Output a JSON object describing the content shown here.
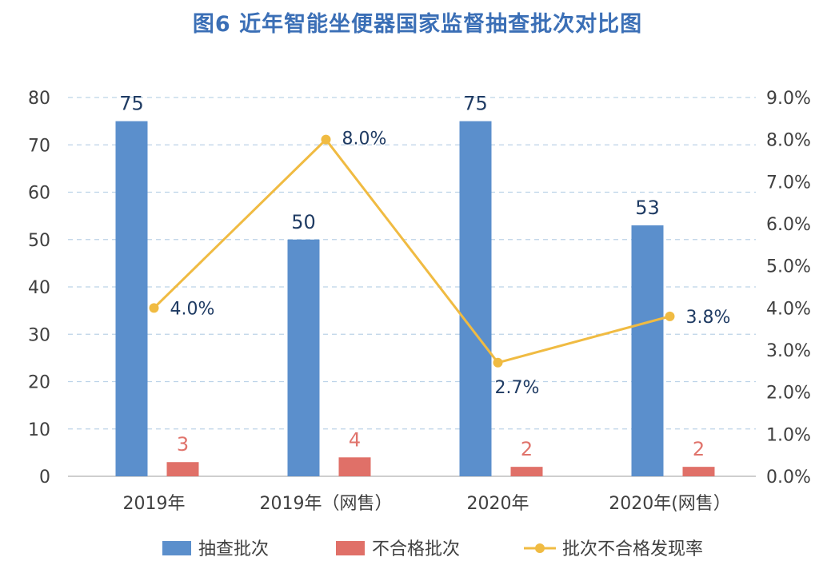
{
  "chart_data": {
    "type": "bar",
    "title": "图6  近年智能坐便器国家监督抽查批次对比图",
    "categories": [
      "2019年",
      "2019年（网售）",
      "2020年",
      "2020年(网售）"
    ],
    "series": [
      {
        "name": "抽查批次",
        "type": "bar",
        "axis": "left",
        "color": "#5b8fcc",
        "values": [
          75,
          50,
          75,
          53
        ],
        "labels": [
          "75",
          "50",
          "75",
          "53"
        ]
      },
      {
        "name": "不合格批次",
        "type": "bar",
        "axis": "left",
        "color": "#e07068",
        "values": [
          3,
          4,
          2,
          2
        ],
        "labels": [
          "3",
          "4",
          "2",
          "2"
        ]
      },
      {
        "name": "批次不合格发现率",
        "type": "line",
        "axis": "right",
        "color": "#f0bb42",
        "values": [
          4.0,
          8.0,
          2.7,
          3.8
        ],
        "labels": [
          "4.0%",
          "8.0%",
          "2.7%",
          "3.8%"
        ]
      }
    ],
    "y_left": {
      "min": 0,
      "max": 80,
      "ticks": [
        "0",
        "10",
        "20",
        "30",
        "40",
        "50",
        "60",
        "70",
        "80"
      ]
    },
    "y_right": {
      "min": 0,
      "max": 9,
      "ticks": [
        "0.0%",
        "1.0%",
        "2.0%",
        "3.0%",
        "4.0%",
        "5.0%",
        "6.0%",
        "7.0%",
        "8.0%",
        "9.0%"
      ]
    },
    "grid": true,
    "legend_position": "bottom"
  }
}
